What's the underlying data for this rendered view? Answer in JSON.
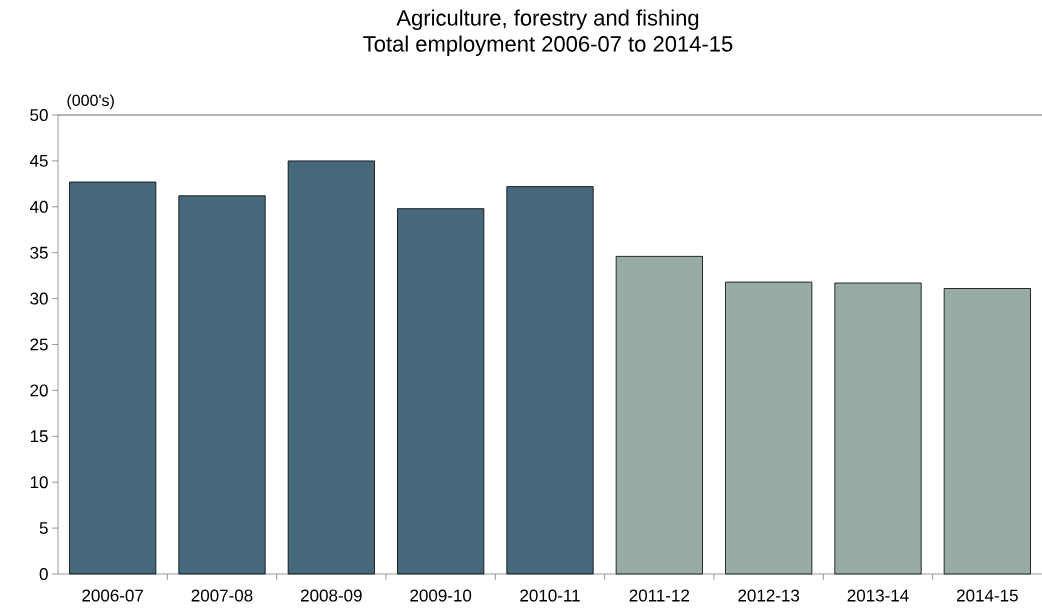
{
  "chart_data": {
    "type": "bar",
    "title": "Agriculture, forestry and fishing",
    "subtitle": "Total employment 2006-07 to 2014-15",
    "ylabel": "(000's)",
    "categories": [
      "2006-07",
      "2007-08",
      "2008-09",
      "2009-10",
      "2010-11",
      "2011-12",
      "2012-13",
      "2013-14",
      "2014-15"
    ],
    "values": [
      42.7,
      41.2,
      45.0,
      39.8,
      42.2,
      34.6,
      31.8,
      31.7,
      31.1
    ],
    "colors": [
      "#46687b",
      "#46687b",
      "#46687b",
      "#46687b",
      "#46687b",
      "#96aca5",
      "#96aca5",
      "#96aca5",
      "#96aca5"
    ],
    "ylim": [
      0,
      50
    ],
    "yticks": [
      0,
      5,
      10,
      15,
      20,
      25,
      30,
      35,
      40,
      45,
      50
    ]
  }
}
